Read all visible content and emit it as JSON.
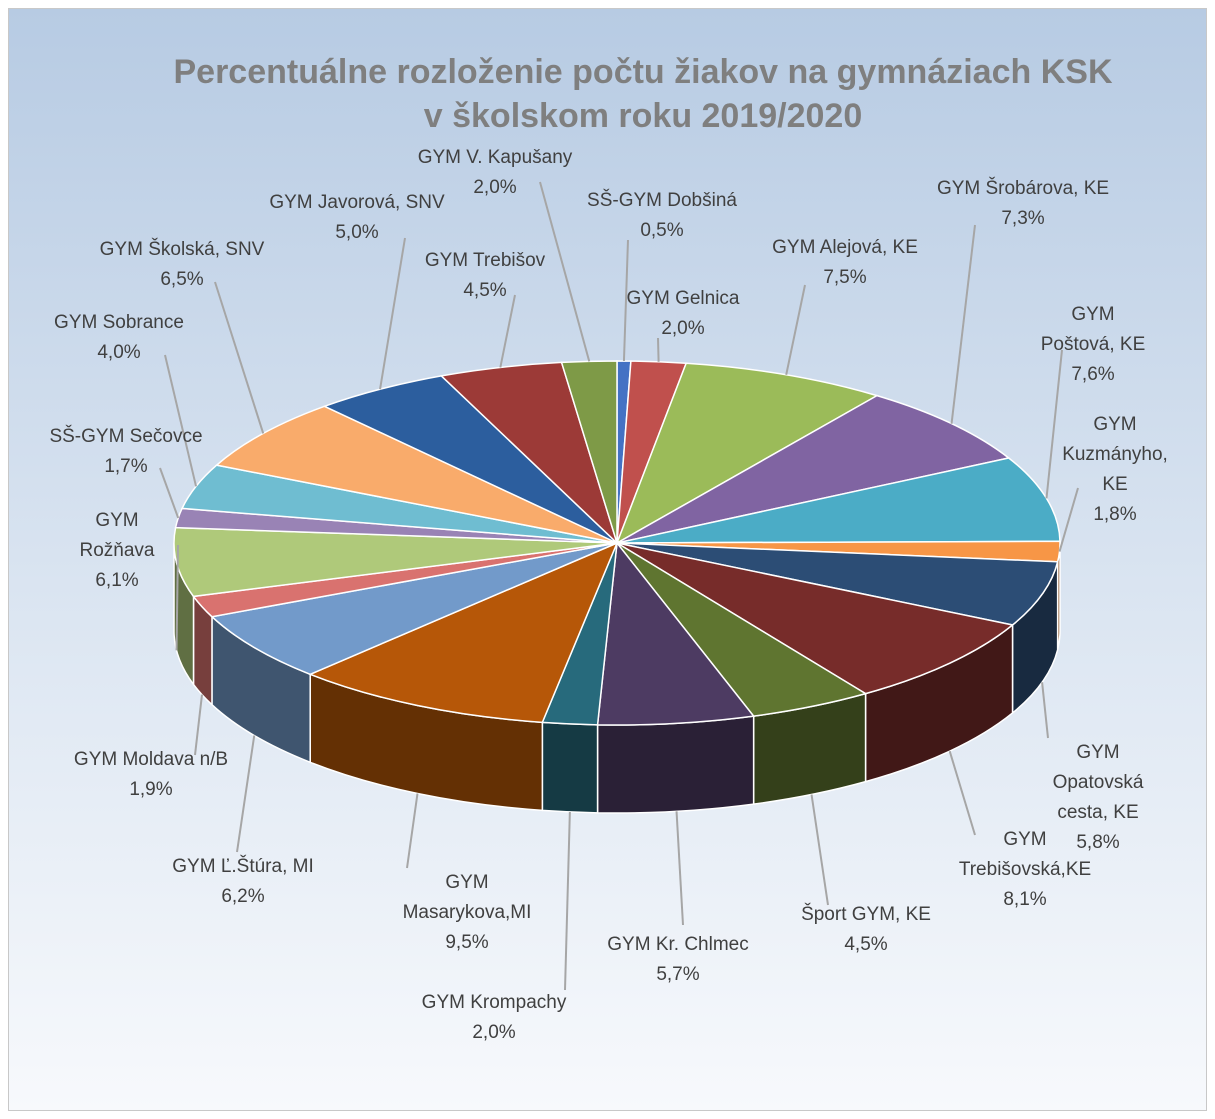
{
  "chart_data": {
    "type": "pie",
    "title": "Percentuálne rozloženie počtu žiakov na gymnáziach KSK v školskom roku 2019/2020",
    "categories": [
      "SŠ-GYM Dobšiná",
      "GYM Gelnica",
      "GYM Alejová, KE",
      "GYM Šrobárova, KE",
      "GYM Poštová, KE",
      "GYM Kuzmányho, KE",
      "GYM Opatovská cesta, KE",
      "GYM Trebišovská,KE",
      "Šport GYM, KE",
      "GYM Kr. Chlmec",
      "GYM Krompachy",
      "GYM Masarykova,MI",
      "GYM Ľ.Štúra, MI",
      "GYM Moldava n/B",
      "GYM Rožňava",
      "SŠ-GYM Sečovce",
      "GYM Sobrance",
      "GYM Školská, SNV",
      "GYM Javorová, SNV",
      "GYM Trebišov",
      "GYM V. Kapušany"
    ],
    "values": [
      0.5,
      2.0,
      7.5,
      7.3,
      7.6,
      1.8,
      5.8,
      8.1,
      4.5,
      5.7,
      2.0,
      9.5,
      6.2,
      1.9,
      6.1,
      1.7,
      4.0,
      6.5,
      5.0,
      4.5,
      2.0
    ],
    "value_labels": [
      "0,5%",
      "2,0%",
      "7,5%",
      "7,3%",
      "7,6%",
      "1,8%",
      "5,8%",
      "8,1%",
      "4,5%",
      "5,7%",
      "2,0%",
      "9,5%",
      "6,2%",
      "1,9%",
      "6,1%",
      "1,7%",
      "4,0%",
      "6,5%",
      "5,0%",
      "4,5%",
      "2,0%"
    ],
    "colors": [
      "#4472c4",
      "#c0504d",
      "#9bbb59",
      "#8064a2",
      "#4bacc6",
      "#f79646",
      "#2c4d75",
      "#772c2a",
      "#5f7530",
      "#4d3b62",
      "#276a7c",
      "#b65708",
      "#729aca",
      "#d9726f",
      "#afc97a",
      "#9983b5",
      "#6fbdd1",
      "#f9ab6b",
      "#2c5e9e",
      "#9c3a37",
      "#7e9a47"
    ]
  }
}
